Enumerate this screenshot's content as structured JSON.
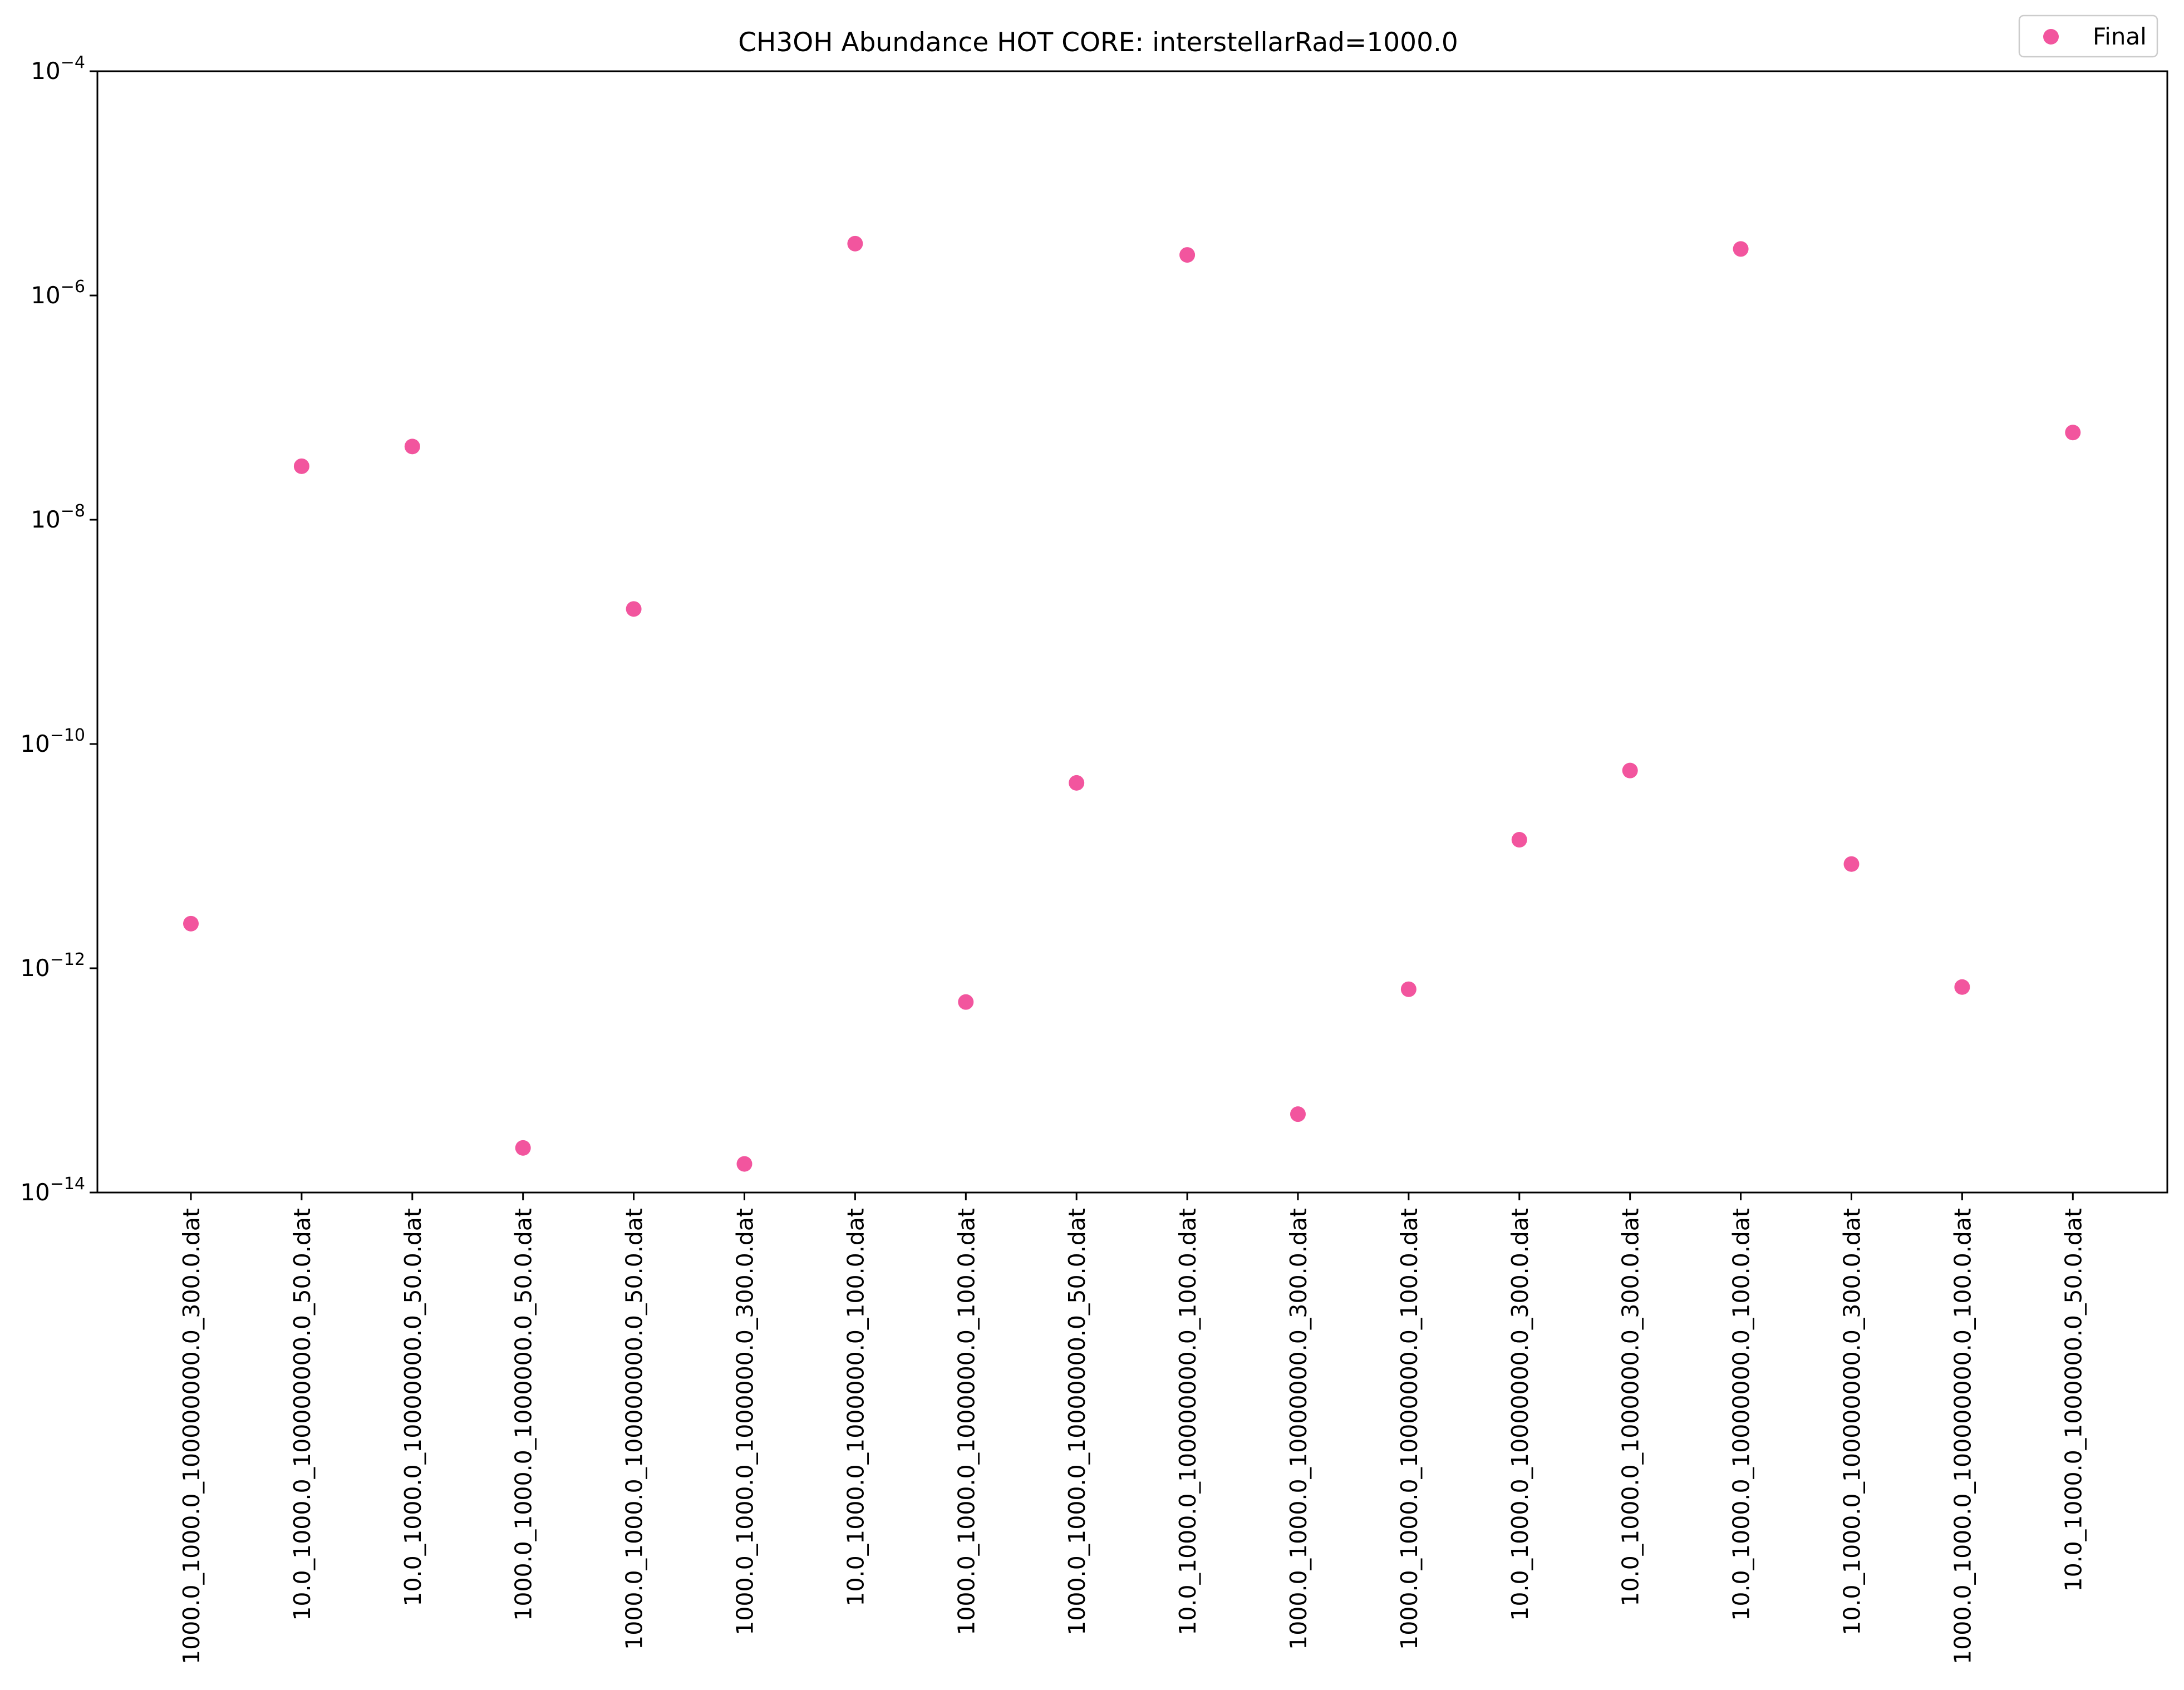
{
  "chart_data": {
    "type": "scatter",
    "title": "CH3OH Abundance HOT CORE: interstellarRad=1000.0",
    "xlabel": "",
    "ylabel": "",
    "yscale": "log",
    "ylim": [
      1e-14,
      0.0001
    ],
    "y_tick_exponents": [
      -14,
      -12,
      -10,
      -8,
      -6,
      -4
    ],
    "grid": false,
    "legend_position": "top-right",
    "categories": [
      "1000.0_1000.0_100000000.0_300.0.dat",
      "10.0_1000.0_100000000.0_50.0.dat",
      "10.0_1000.0_10000000.0_50.0.dat",
      "1000.0_1000.0_1000000.0_50.0.dat",
      "1000.0_1000.0_100000000.0_50.0.dat",
      "1000.0_1000.0_1000000.0_300.0.dat",
      "10.0_1000.0_1000000.0_100.0.dat",
      "1000.0_1000.0_1000000.0_100.0.dat",
      "1000.0_1000.0_10000000.0_50.0.dat",
      "10.0_1000.0_100000000.0_100.0.dat",
      "1000.0_1000.0_10000000.0_300.0.dat",
      "1000.0_1000.0_10000000.0_100.0.dat",
      "10.0_1000.0_10000000.0_300.0.dat",
      "10.0_1000.0_1000000.0_300.0.dat",
      "10.0_1000.0_10000000.0_100.0.dat",
      "10.0_1000.0_100000000.0_300.0.dat",
      "1000.0_1000.0_100000000.0_100.0.dat",
      "10.0_1000.0_1000000.0_50.0.dat"
    ],
    "series": [
      {
        "name": "Final",
        "color": "#f2559e",
        "values": [
          2.5e-12,
          3e-08,
          4.5e-08,
          2.5e-14,
          1.6e-09,
          1.8e-14,
          2.9e-06,
          5e-13,
          4.5e-11,
          2.3e-06,
          5e-14,
          6.5e-13,
          1.4e-11,
          5.8e-11,
          2.6e-06,
          8.5e-12,
          6.8e-13,
          6e-08
        ]
      }
    ]
  }
}
